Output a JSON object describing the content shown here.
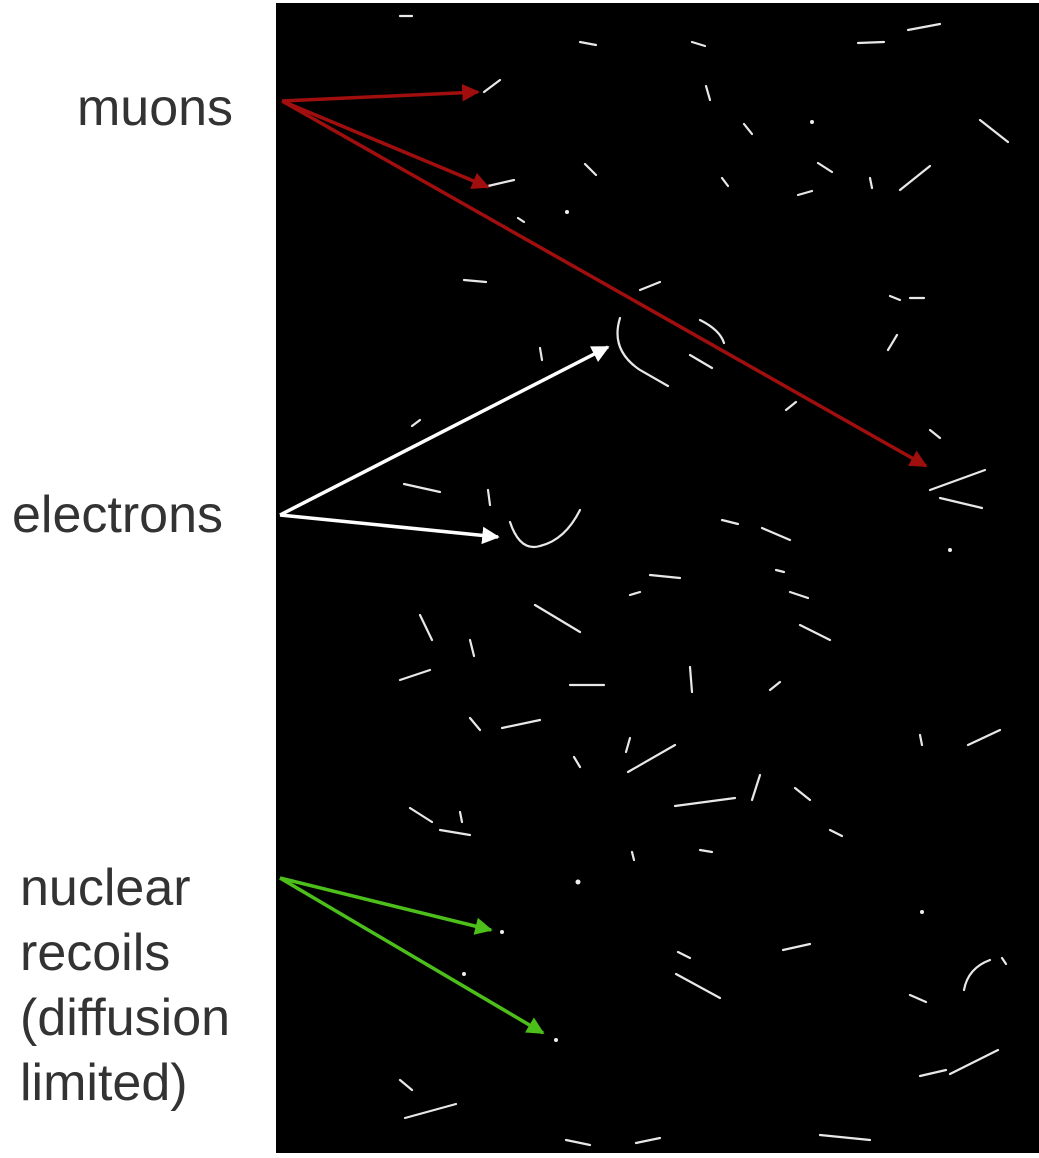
{
  "annotations": {
    "muons": "muons",
    "electrons": "electrons",
    "nuclear_recoils": [
      "nuclear",
      "recoils",
      "(diffusion",
      "limited)"
    ]
  }
}
